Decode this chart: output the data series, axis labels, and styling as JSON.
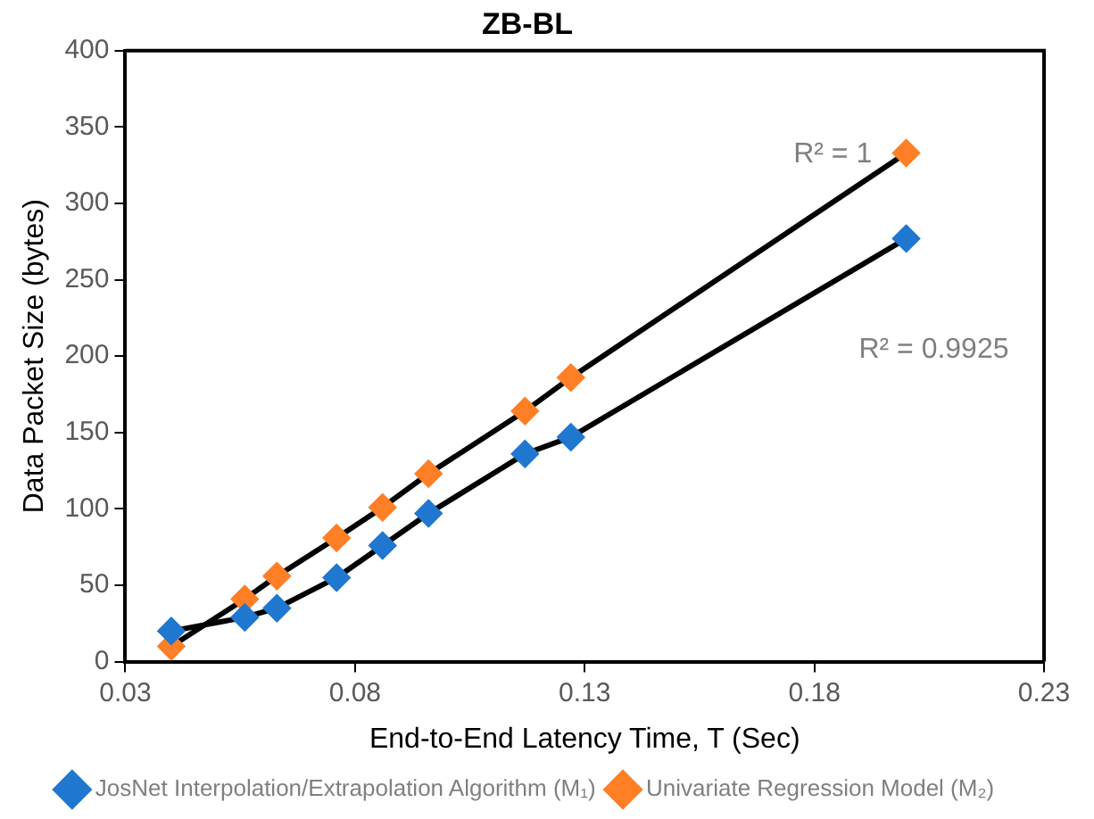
{
  "chart_data": {
    "type": "line",
    "title": "ZB-BL",
    "xlabel": "End-to-End Latency Time, T (Sec)",
    "ylabel": "Data Packet Size (bytes)",
    "x": [
      0.04,
      0.056,
      0.063,
      0.076,
      0.086,
      0.096,
      0.117,
      0.127,
      0.2
    ],
    "series": [
      {
        "name": "JosNet Interpolation/Extrapolation Algorithm (M₁)",
        "color": "#1f77d0",
        "values": [
          20,
          29,
          35,
          55,
          76,
          97,
          136,
          147,
          277
        ]
      },
      {
        "name": "Univariate Regression Model (M₂)",
        "color": "#ff7f27",
        "values": [
          10,
          41,
          56,
          81,
          101,
          123,
          164,
          186,
          333
        ]
      }
    ],
    "xlim": [
      0.03,
      0.23
    ],
    "xticks": [
      0.03,
      0.08,
      0.13,
      0.18,
      0.23
    ],
    "ylim": [
      0,
      400
    ],
    "yticks": [
      0,
      50,
      100,
      150,
      200,
      250,
      300,
      350,
      400
    ],
    "annotations": [
      "R² = 1",
      "R² = 0.9925"
    ],
    "grid": false,
    "legend": "bottom",
    "marker": "diamond",
    "line_style": "solid"
  }
}
